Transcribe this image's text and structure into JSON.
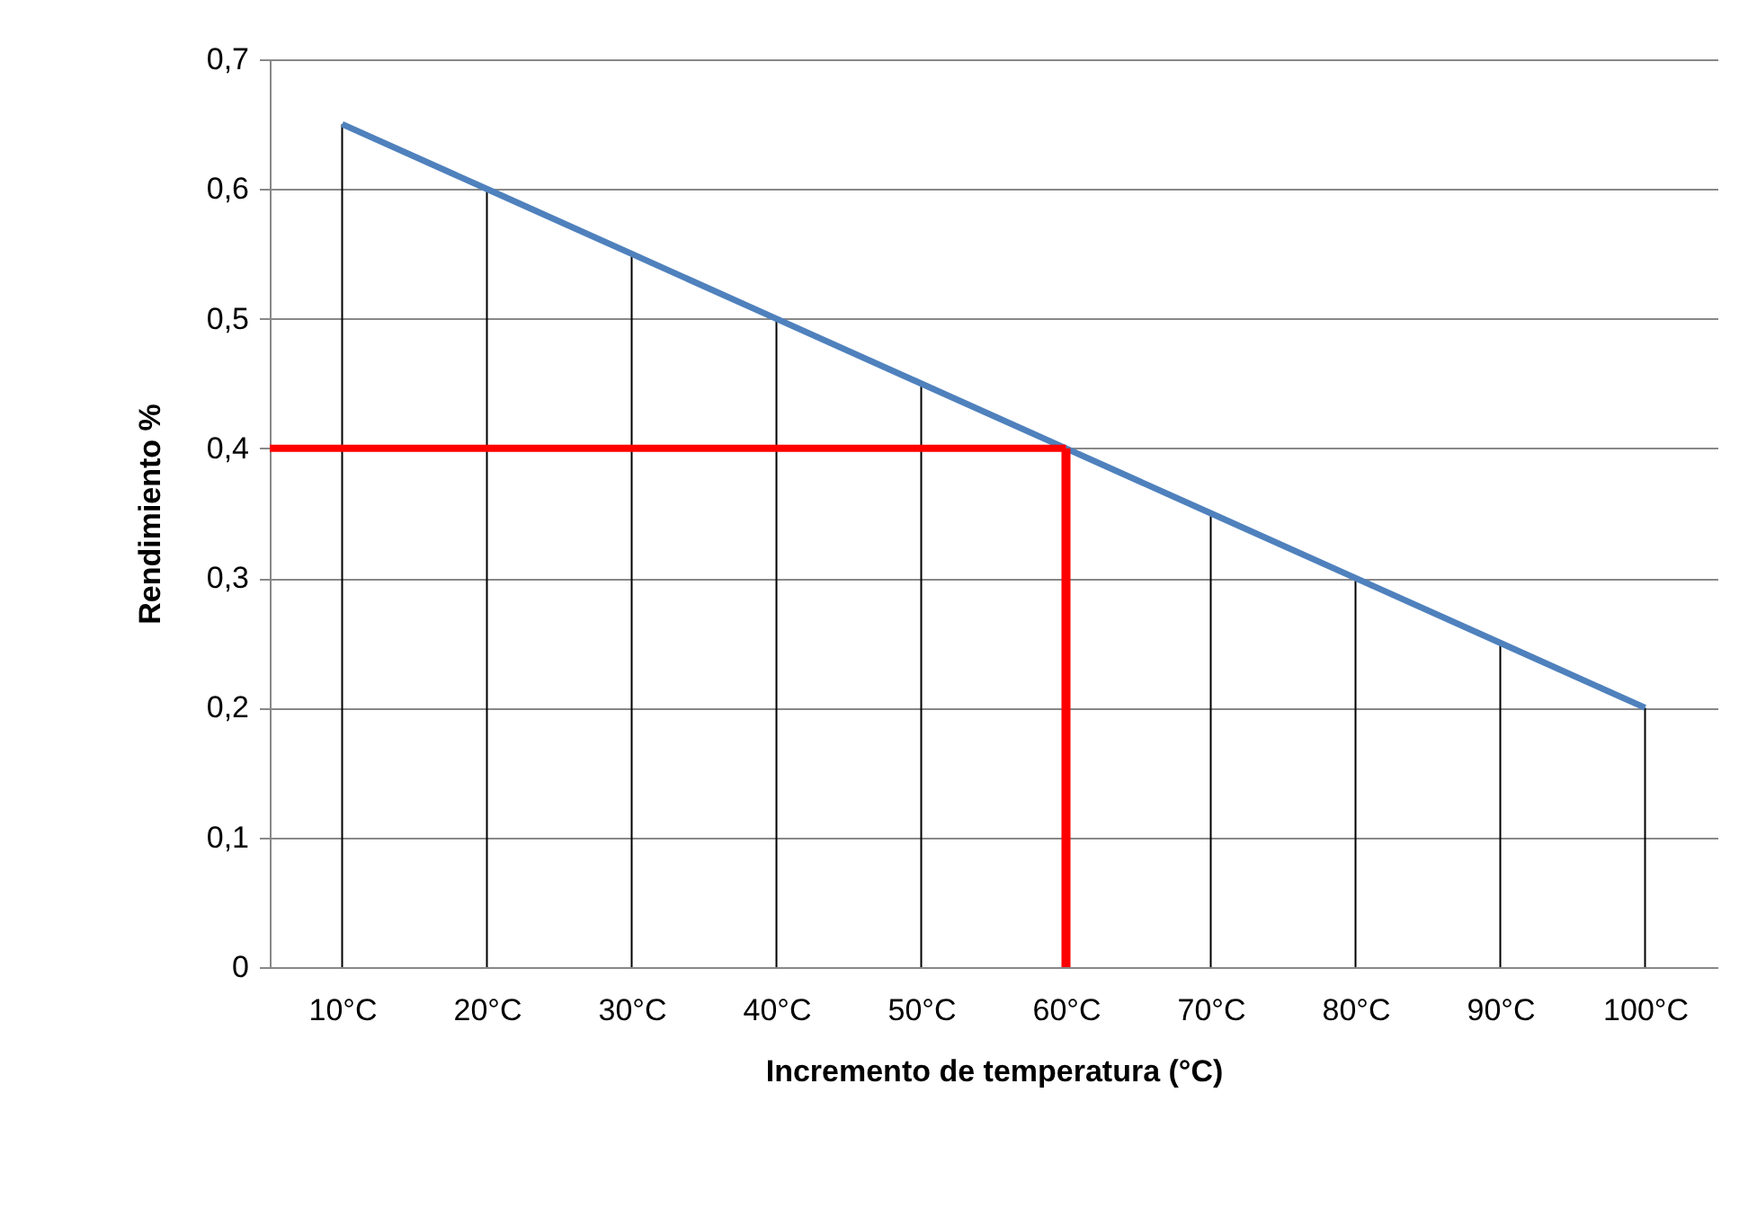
{
  "chart_data": {
    "type": "line",
    "xlabel": "Incremento de temperatura (°C)",
    "ylabel": "Rendimiento %",
    "categories": [
      "10°C",
      "20°C",
      "30°C",
      "40°C",
      "50°C",
      "60°C",
      "70°C",
      "80°C",
      "90°C",
      "100°C"
    ],
    "series": [
      {
        "type": "bar",
        "color": "#000000",
        "values": [
          0.65,
          0.6,
          0.55,
          0.5,
          0.45,
          null,
          0.35,
          0.3,
          0.25,
          0.2
        ]
      },
      {
        "color": "#4f81bd",
        "values": [
          0.65,
          0.6,
          0.55,
          0.5,
          0.45,
          0.4,
          0.35,
          0.3,
          0.25,
          0.2
        ]
      }
    ],
    "ylim": [
      0,
      0.7
    ],
    "yticks": [
      0,
      {
        "value": 0.1,
        "label": "0,1"
      },
      {
        "value": 0.2,
        "label": "0,2"
      },
      {
        "value": 0.3,
        "label": "0,3"
      },
      {
        "value": 0.4,
        "label": "0,4"
      },
      {
        "value": 0.5,
        "label": "0,5"
      },
      {
        "value": 0.6,
        "label": "0,6"
      },
      {
        "value": 0.7,
        "label": "0,7"
      }
    ],
    "grid": "y",
    "ref_lines": [
      {
        "axis": "y",
        "value": 0.4,
        "color": "#ff0000"
      },
      {
        "axis": "x",
        "value": "60°C",
        "color": "#ff0000"
      }
    ]
  }
}
